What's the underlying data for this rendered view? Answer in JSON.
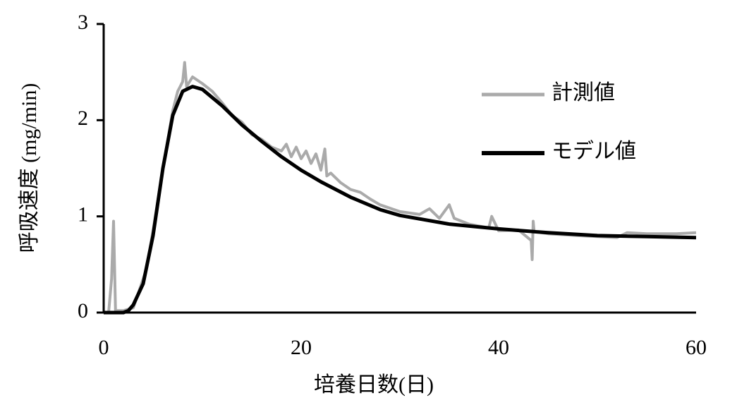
{
  "chart_data": {
    "type": "line",
    "xlabel": "培養日数(日)",
    "ylabel": "呼吸速度 (mg/min)",
    "xlim": [
      0,
      60
    ],
    "xticks": [
      0,
      20,
      40,
      60
    ],
    "ylim": [
      0,
      3
    ],
    "yticks": [
      0,
      1,
      2,
      3
    ],
    "series": [
      {
        "name": "計測値",
        "color": "#aaaaaa",
        "x": [
          0,
          0.5,
          0.8,
          1,
          1.2,
          2,
          3,
          4,
          4.3,
          5,
          6,
          7,
          7.5,
          8,
          8.2,
          8.4,
          9,
          10,
          11,
          12,
          13,
          14,
          15,
          16,
          17,
          18,
          18.5,
          19,
          19.5,
          20,
          20.5,
          21,
          21.5,
          22,
          22.4,
          22.6,
          23,
          24,
          25,
          26,
          27,
          28,
          30,
          32,
          33,
          34,
          35,
          35.5,
          37,
          38,
          39,
          39.3,
          40,
          42,
          43.3,
          43.4,
          43.5,
          43.6,
          45,
          48,
          50,
          52,
          53,
          55,
          58,
          60
        ],
        "values": [
          0,
          0,
          0.35,
          0.95,
          0.02,
          0.02,
          0.05,
          0.35,
          0.45,
          0.85,
          1.5,
          2.1,
          2.3,
          2.4,
          2.6,
          2.35,
          2.45,
          2.38,
          2.3,
          2.18,
          2.05,
          1.98,
          1.85,
          1.8,
          1.72,
          1.68,
          1.75,
          1.62,
          1.72,
          1.6,
          1.68,
          1.55,
          1.65,
          1.48,
          1.7,
          1.42,
          1.45,
          1.35,
          1.28,
          1.25,
          1.18,
          1.12,
          1.05,
          1.02,
          1.08,
          0.98,
          1.12,
          0.98,
          0.92,
          0.9,
          0.88,
          1.0,
          0.85,
          0.86,
          0.75,
          0.55,
          0.95,
          0.84,
          0.82,
          0.8,
          0.79,
          0.78,
          0.83,
          0.82,
          0.82,
          0.83
        ]
      },
      {
        "name": "モデル値",
        "color": "#000000",
        "x": [
          0,
          1,
          2,
          2.5,
          3,
          4,
          5,
          6,
          7,
          8,
          9,
          10,
          12,
          14,
          16,
          18,
          20,
          22,
          25,
          28,
          30,
          35,
          40,
          45,
          50,
          55,
          60
        ],
        "values": [
          0,
          0,
          0,
          0.02,
          0.08,
          0.3,
          0.8,
          1.5,
          2.05,
          2.3,
          2.35,
          2.32,
          2.15,
          1.95,
          1.78,
          1.62,
          1.48,
          1.36,
          1.2,
          1.07,
          1.01,
          0.92,
          0.87,
          0.83,
          0.8,
          0.79,
          0.78
        ]
      }
    ]
  }
}
